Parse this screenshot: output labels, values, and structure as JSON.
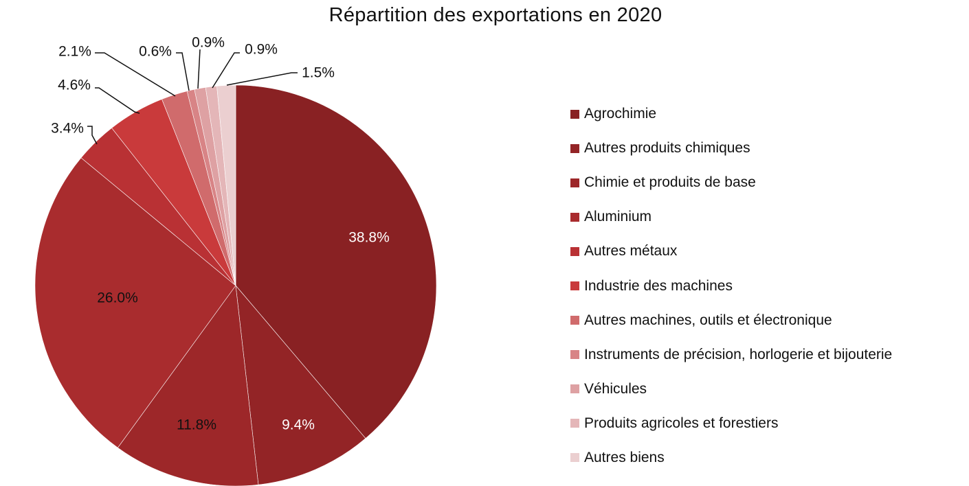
{
  "chart_data": {
    "type": "pie",
    "title": "Répartition des exportations en 2020",
    "legend_position": "right",
    "slices": [
      {
        "name": "Agrochimie",
        "value": 38.8,
        "label": "38.8%",
        "color": "#892123"
      },
      {
        "name": "Autres produits chimiques",
        "value": 9.4,
        "label": "9.4%",
        "color": "#932426"
      },
      {
        "name": "Chimie et produits de base",
        "value": 11.8,
        "label": "11.8%",
        "color": "#9d2729"
      },
      {
        "name": "Aluminium",
        "value": 26.0,
        "label": "26.0%",
        "color": "#a92c2e"
      },
      {
        "name": "Autres métaux",
        "value": 3.4,
        "label": "3.4%",
        "color": "#b93134"
      },
      {
        "name": "Industrie des machines",
        "value": 4.6,
        "label": "4.6%",
        "color": "#c93a3b"
      },
      {
        "name": "Autres machines, outils et électronique",
        "value": 2.1,
        "label": "2.1%",
        "color": "#d06b6c"
      },
      {
        "name": "Instruments de précision, horlogerie et bijouterie",
        "value": 0.6,
        "label": "0.6%",
        "color": "#d88486"
      },
      {
        "name": "Véhicules",
        "value": 0.9,
        "label": "0.9%",
        "color": "#dea1a3"
      },
      {
        "name": "Produits agricoles et forestiers",
        "value": 0.9,
        "label": "0.9%",
        "color": "#e4b6b8"
      },
      {
        "name": "Autres biens",
        "value": 1.5,
        "label": "1.5%",
        "color": "#ebcfd0"
      }
    ]
  }
}
